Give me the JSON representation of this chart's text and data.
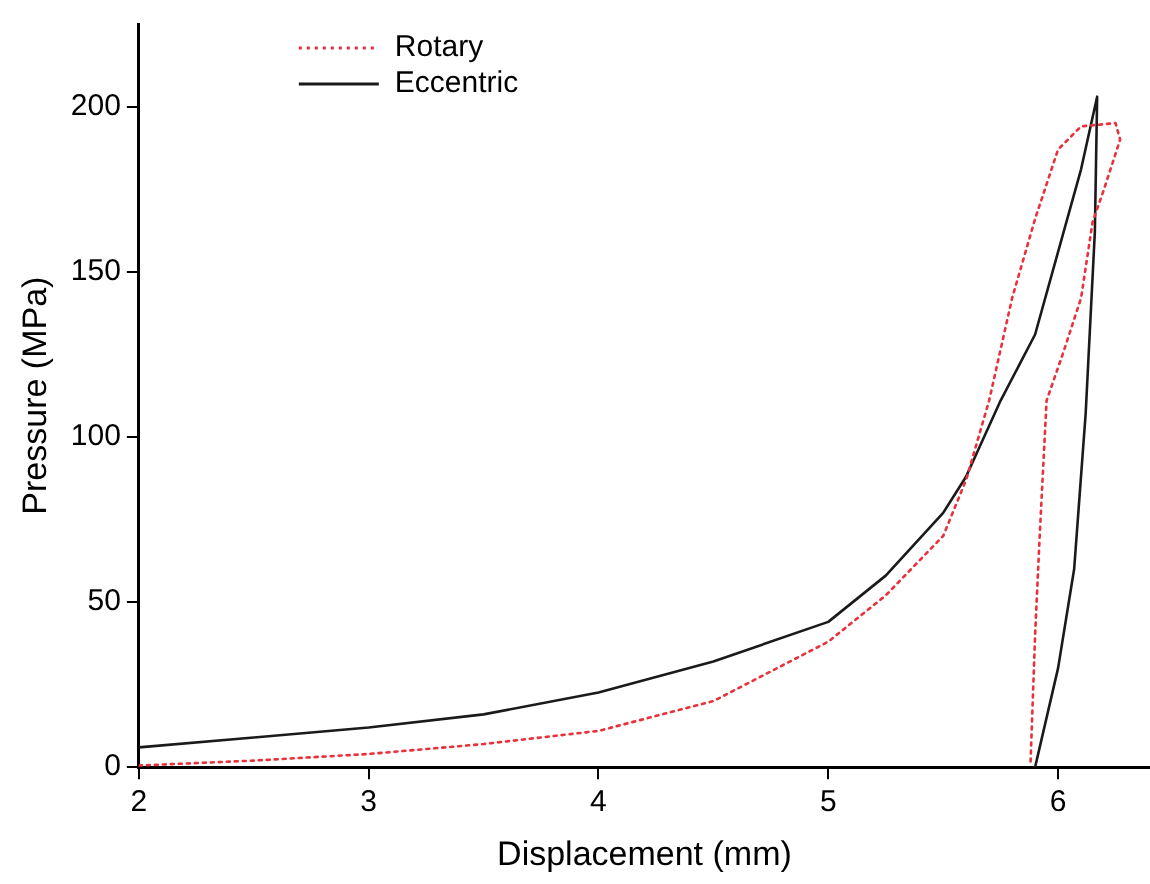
{
  "chart_data": {
    "type": "line",
    "xlabel": "Displacement (mm)",
    "ylabel": "Pressure (MPa)",
    "xlim": [
      2,
      6.4
    ],
    "ylim": [
      0,
      225
    ],
    "xticks": [
      2,
      3,
      4,
      5,
      6
    ],
    "yticks": [
      0,
      50,
      100,
      150,
      200
    ],
    "legend": "top left",
    "marker": "none",
    "grid": false,
    "series": [
      {
        "name": "Rotary",
        "color": "#e8313a",
        "line_style": "dotted",
        "x": [
          2,
          2.5,
          3,
          3.5,
          4,
          4.5,
          5,
          5.25,
          5.5,
          5.6,
          5.7,
          5.8,
          5.9,
          6.0,
          6.1,
          6.25,
          6.27,
          6.2,
          6.15,
          6.1,
          6.02,
          5.95,
          5.92,
          5.9,
          5.88
        ],
        "values": [
          0.5,
          2,
          4,
          7,
          11,
          20,
          38,
          52,
          70,
          87,
          111,
          142,
          166,
          187,
          194,
          195,
          190,
          175,
          165,
          142,
          125,
          111,
          70,
          40,
          1
        ]
      },
      {
        "name": "Eccentric",
        "color": "#1a1a1a",
        "line_style": "solid",
        "x": [
          2,
          2.5,
          3,
          3.5,
          4,
          4.5,
          5,
          5.25,
          5.5,
          5.6,
          5.75,
          5.9,
          6.0,
          6.1,
          6.17,
          6.16,
          6.12,
          6.07,
          6.0,
          5.9
        ],
        "values": [
          6,
          9,
          12,
          16,
          22.6,
          32,
          44,
          58,
          77,
          88,
          111,
          131,
          156,
          181,
          203,
          162,
          107,
          60,
          30,
          0
        ]
      }
    ]
  }
}
